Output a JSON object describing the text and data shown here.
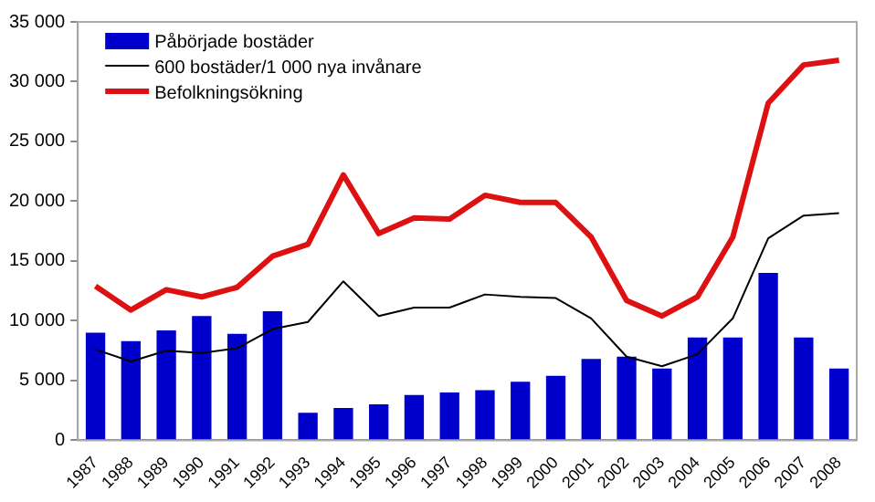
{
  "chart_data": {
    "type": "bar",
    "categories": [
      "1987",
      "1988",
      "1989",
      "1990",
      "1991",
      "1992",
      "1993",
      "1994",
      "1995",
      "1996",
      "1997",
      "1998",
      "1999",
      "2000",
      "2001",
      "2002",
      "2003",
      "2004",
      "2005",
      "2006",
      "2007",
      "2008"
    ],
    "series": [
      {
        "name": "Påbörjade bostäder",
        "color": "#0000cc",
        "values": [
          9000,
          8300,
          9200,
          10400,
          8900,
          10800,
          2300,
          2700,
          3000,
          3800,
          4000,
          4200,
          4900,
          5400,
          6800,
          7000,
          6000,
          8600,
          8600,
          14000,
          8600,
          6000
        ]
      },
      {
        "name": "600 bostäder/1 000 nya invånare",
        "color": "#000000",
        "type": "line",
        "values": [
          7600,
          6600,
          7500,
          7300,
          7700,
          9300,
          9900,
          13300,
          10400,
          11100,
          11100,
          12200,
          12000,
          11900,
          10200,
          7000,
          6200,
          7200,
          10200,
          16900,
          18800,
          19000
        ]
      },
      {
        "name": "Befolkningsökning",
        "color": "#dd1111",
        "type": "line",
        "values": [
          12900,
          10900,
          12600,
          12000,
          12800,
          15400,
          16400,
          22200,
          17300,
          18600,
          18500,
          20500,
          19900,
          19900,
          17000,
          11700,
          10400,
          12000,
          17000,
          28200,
          31400,
          31800
        ]
      }
    ],
    "ylim": [
      0,
      35000
    ],
    "yticks": [
      0,
      {
        "value": 5000,
        "label": "5 000"
      },
      {
        "value": 10000,
        "label": "10 000"
      },
      {
        "value": 15000,
        "label": "15 000"
      },
      {
        "value": 20000,
        "label": "20 000"
      },
      {
        "value": 25000,
        "label": "25 000"
      },
      {
        "value": 30000,
        "label": "30 000"
      },
      {
        "value": 35000,
        "label": "35 000"
      }
    ],
    "legend": "top left",
    "marker": "none"
  }
}
